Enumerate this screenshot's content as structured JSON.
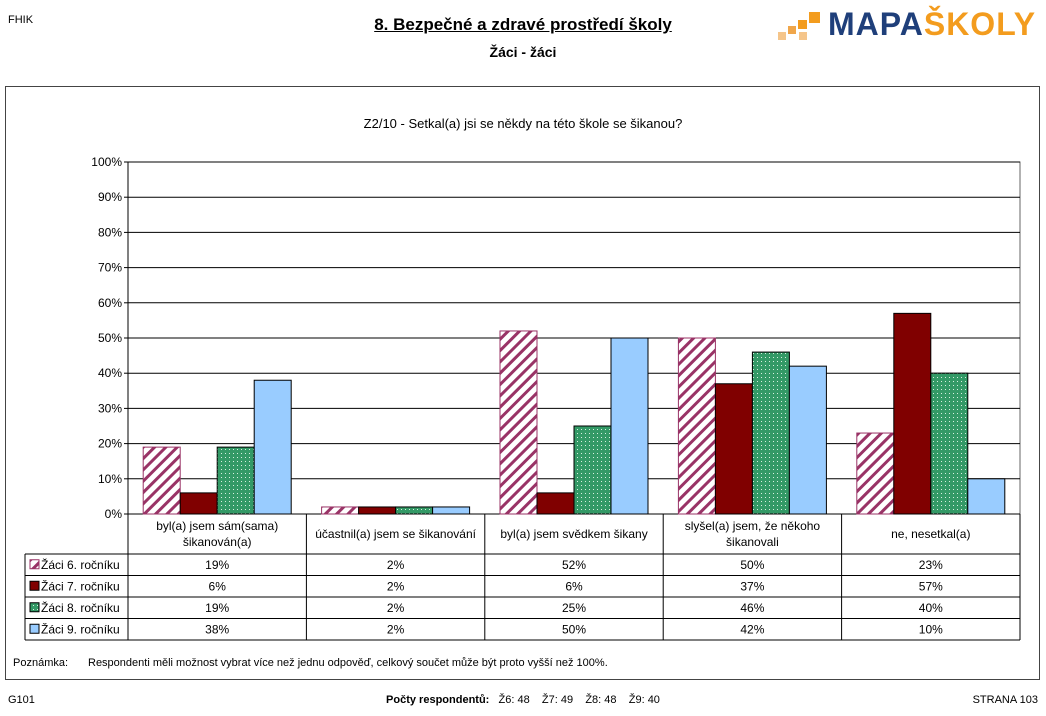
{
  "header": {
    "corner_code": "FHIK",
    "title": "8. Bezpečné a zdravé prostředí školy",
    "subtitle": "Žáci - žáci",
    "logo_text_a": "MAPA",
    "logo_text_b": "ŠKOLY"
  },
  "chart_data": {
    "type": "bar",
    "title": "Z2/10 - Setkal(a) jsi se někdy na této škole se šikanou?",
    "categories": [
      "byl(a) jsem sám(sama) šikanován(a)",
      "účastnil(a) jsem se šikanování",
      "byl(a) jsem svědkem šikany",
      "slyšel(a) jsem, že někoho šikanovali",
      "ne, nesetkal(a)"
    ],
    "series": [
      {
        "name": "Žáci 6. ročníku",
        "values": [
          19,
          2,
          52,
          50,
          23
        ],
        "labels": [
          "19%",
          "2%",
          "52%",
          "50%",
          "23%"
        ],
        "color": "#993366",
        "pattern": "diagonal-stripes"
      },
      {
        "name": "Žáci 7. ročníku",
        "values": [
          6,
          2,
          6,
          37,
          57
        ],
        "labels": [
          "6%",
          "2%",
          "6%",
          "37%",
          "57%"
        ],
        "color": "#800000",
        "pattern": "solid"
      },
      {
        "name": "Žáci 8. ročníku",
        "values": [
          19,
          2,
          25,
          46,
          40
        ],
        "labels": [
          "19%",
          "2%",
          "25%",
          "46%",
          "40%"
        ],
        "color": "#339966",
        "pattern": "dots"
      },
      {
        "name": "Žáci 9. ročníku",
        "values": [
          38,
          2,
          50,
          42,
          10
        ],
        "labels": [
          "38%",
          "2%",
          "50%",
          "42%",
          "10%"
        ],
        "color": "#99ccff",
        "pattern": "solid"
      }
    ],
    "ylim": [
      0,
      100
    ],
    "yticks": [
      "0%",
      "10%",
      "20%",
      "30%",
      "40%",
      "50%",
      "60%",
      "70%",
      "80%",
      "90%",
      "100%"
    ],
    "grid": true,
    "legend": "data-table"
  },
  "note": {
    "label": "Poznámka:",
    "text": "Respondenti měli možnost vybrat více než jednu odpověď, celkový součet může být proto vyšší než 100%."
  },
  "footer": {
    "left": "G101",
    "respondents_label": "Počty respondentů:",
    "respondents": "Ž6: 48    Ž7: 49    Ž8: 48    Ž9: 40",
    "right": "STRANA 103"
  }
}
